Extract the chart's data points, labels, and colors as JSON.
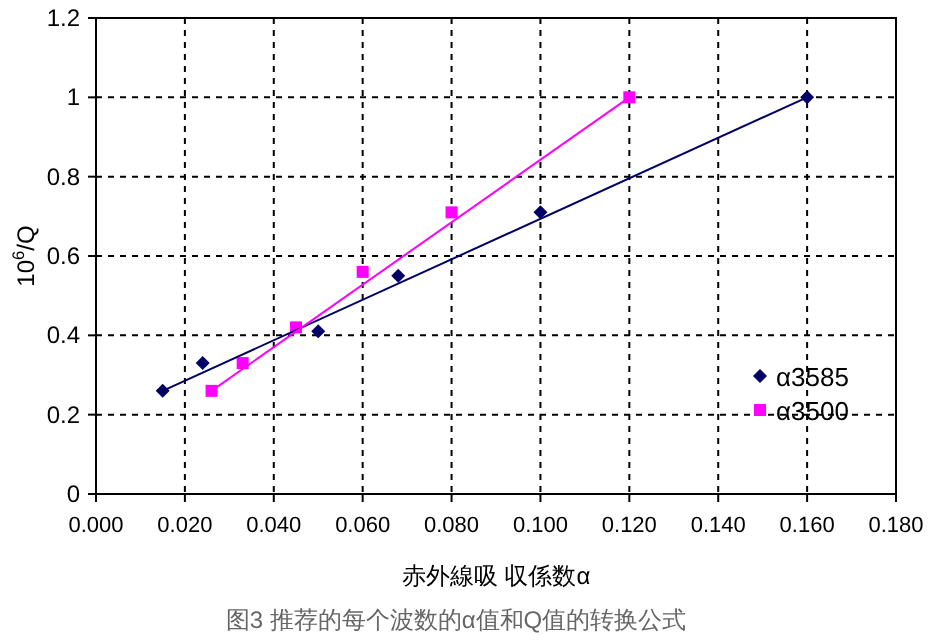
{
  "chart_data": {
    "type": "scatter",
    "xlabel": "赤外線吸 収係数α",
    "ylabel": "10$^{6}$/Q",
    "annotations": [
      "图3 推荐的每个波数的α值和Q值的转换公式"
    ],
    "xlim": [
      0,
      0.18
    ],
    "ylim": [
      0,
      1.2
    ],
    "xticks": [
      {
        "value": 0,
        "label": "0.000"
      },
      {
        "value": 0.02,
        "label": "0.020"
      },
      {
        "value": 0.04,
        "label": "0.040"
      },
      {
        "value": 0.06,
        "label": "0.060"
      },
      {
        "value": 0.08,
        "label": "0.080"
      },
      {
        "value": 0.1,
        "label": "0.100"
      },
      {
        "value": 0.12,
        "label": "0.120"
      },
      {
        "value": 0.14,
        "label": "0.140"
      },
      {
        "value": 0.16,
        "label": "0.160"
      },
      {
        "value": 0.18,
        "label": "0.180"
      }
    ],
    "yticks": [
      0,
      0.2,
      0.4,
      0.6,
      0.8,
      1,
      1.2
    ],
    "grid": true,
    "legend": "right",
    "series": [
      {
        "name": "α3585",
        "type": "scatter",
        "marker": "diamond",
        "color": "#000066",
        "x": [
          0.015,
          0.024,
          0.05,
          0.068,
          0.1,
          0.16
        ],
        "values": [
          0.26,
          0.33,
          0.41,
          0.55,
          0.71,
          1.0
        ]
      },
      {
        "name": "α3500",
        "type": "scatter",
        "marker": "square",
        "color": "#ff00ff",
        "x": [
          0.026,
          0.033,
          0.045,
          0.06,
          0.08,
          0.12
        ],
        "values": [
          0.26,
          0.33,
          0.42,
          0.56,
          0.71,
          1.0
        ]
      },
      {
        "type": "line",
        "color": "#000066",
        "x": [
          0.015,
          0.16
        ],
        "values": [
          0.26,
          1.0
        ]
      },
      {
        "type": "line",
        "color": "#ff00ff",
        "x": [
          0.026,
          0.12
        ],
        "values": [
          0.26,
          1.0
        ]
      }
    ]
  }
}
